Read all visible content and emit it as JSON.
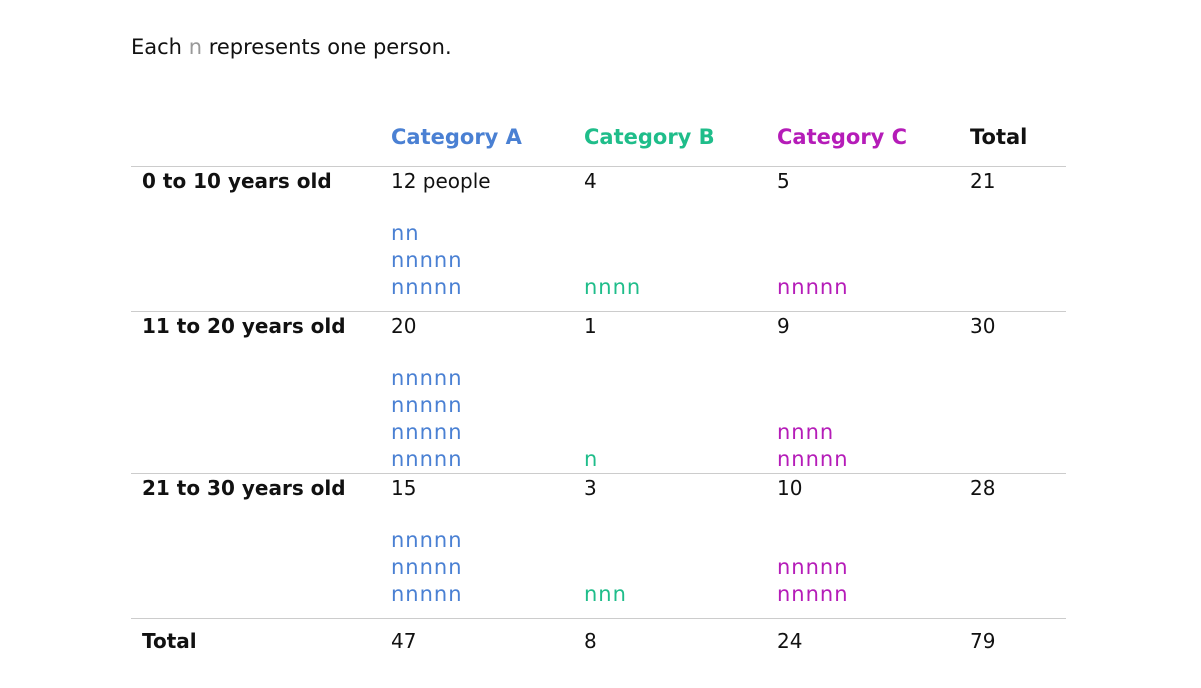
{
  "intro": {
    "prefix": "Each",
    "glyph": "n",
    "suffix": "represents one person."
  },
  "colors": {
    "category_a": "#4a80d3",
    "category_b": "#1fbd8a",
    "category_c": "#b51cb8",
    "glyph_legend": "#999999",
    "rule": "#cccccc"
  },
  "chart_data": {
    "type": "table",
    "unit_glyph": "n",
    "unit_value": 1,
    "columns": [
      "Category A",
      "Category B",
      "Category C",
      "Total"
    ],
    "rows": [
      {
        "label": "0 to 10 years old",
        "values": [
          12,
          4,
          5
        ],
        "display": [
          "12 people",
          "4",
          "5"
        ],
        "total": 21,
        "total_display": "21"
      },
      {
        "label": "11 to 20 years old",
        "values": [
          20,
          1,
          9
        ],
        "display": [
          "20",
          "1",
          "9"
        ],
        "total": 30,
        "total_display": "30"
      },
      {
        "label": "21 to 30 years old",
        "values": [
          15,
          3,
          10
        ],
        "display": [
          "15",
          "3",
          "10"
        ],
        "total": 28,
        "total_display": "28"
      }
    ],
    "totals": {
      "label": "Total",
      "values": [
        47,
        8,
        24
      ],
      "display": [
        "47",
        "8",
        "24"
      ],
      "grand_total": 79,
      "grand_total_display": "79"
    }
  }
}
